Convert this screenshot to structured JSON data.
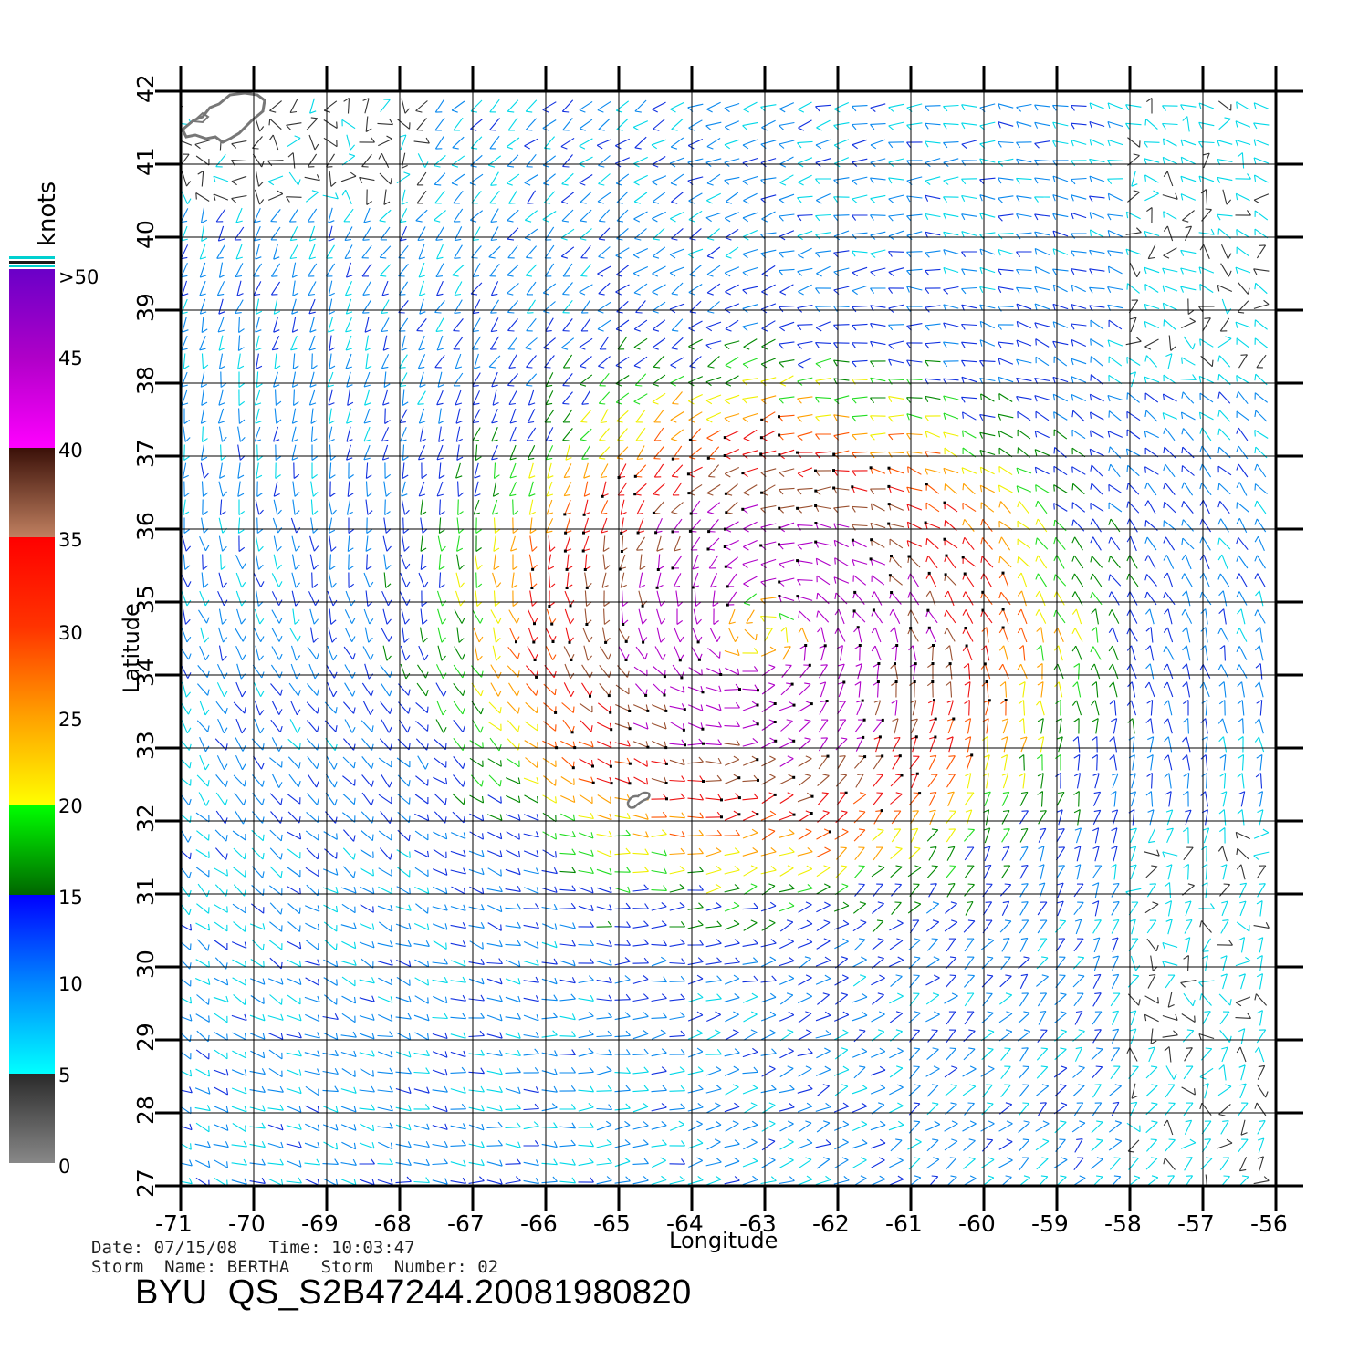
{
  "map": {
    "lon_range": [
      -71,
      -56
    ],
    "lat_range": [
      27,
      42
    ],
    "lon_ticks": [
      "-71",
      "-70",
      "-69",
      "-68",
      "-67",
      "-66",
      "-65",
      "-64",
      "-63",
      "-62",
      "-61",
      "-60",
      "-59",
      "-58",
      "-57",
      "-56"
    ],
    "lat_ticks": [
      "27",
      "28",
      "29",
      "30",
      "31",
      "32",
      "33",
      "34",
      "35",
      "36",
      "37",
      "38",
      "39",
      "40",
      "41",
      "42"
    ],
    "xlabel": "Longitude",
    "ylabel": "Latitude",
    "grid": true,
    "storm_center": {
      "lon": -63.0,
      "lat": 34.6
    },
    "land": [
      {
        "name": "cape-cod",
        "lat_range": [
          41.4,
          42.0
        ]
      },
      {
        "name": "bermuda",
        "lon": -64.75,
        "lat": 32.3
      }
    ],
    "wind_field": "cyclonic vectors, wind speed increasing toward the storm centre"
  },
  "colorbar": {
    "unit": "knots",
    "labels": [
      "0",
      "5",
      "10",
      "15",
      "20",
      "25",
      "30",
      "35",
      "40",
      "45",
      ">50"
    ],
    "colors": {
      "0-5": [
        "#808080",
        "#2a2a2a"
      ],
      "5-10": [
        "#00ffff",
        "#00aaff"
      ],
      "10-15": [
        "#0077ff",
        "#0000ff"
      ],
      "15-20": [
        "#007000",
        "#00ff00"
      ],
      "20-25": [
        "#ffff00",
        "#ffa500"
      ],
      "25-30": [
        "#ff8800",
        "#ff3300"
      ],
      "30-35": [
        "#ff3300",
        "#ff0000"
      ],
      "35-40": [
        "#c08060",
        "#3a1008"
      ],
      "40-45": [
        "#ff00ff",
        "#cc00cc"
      ],
      "45-50": [
        "#aa00cc",
        "#6a00cc"
      ]
    }
  },
  "metadata": {
    "date_time": "Date: 07/15/08   Time: 10:03:47",
    "storm": "Storm  Name: BERTHA   Storm  Number: 02"
  },
  "product_id": "BYU  QS_S2B47244.20081980820"
}
